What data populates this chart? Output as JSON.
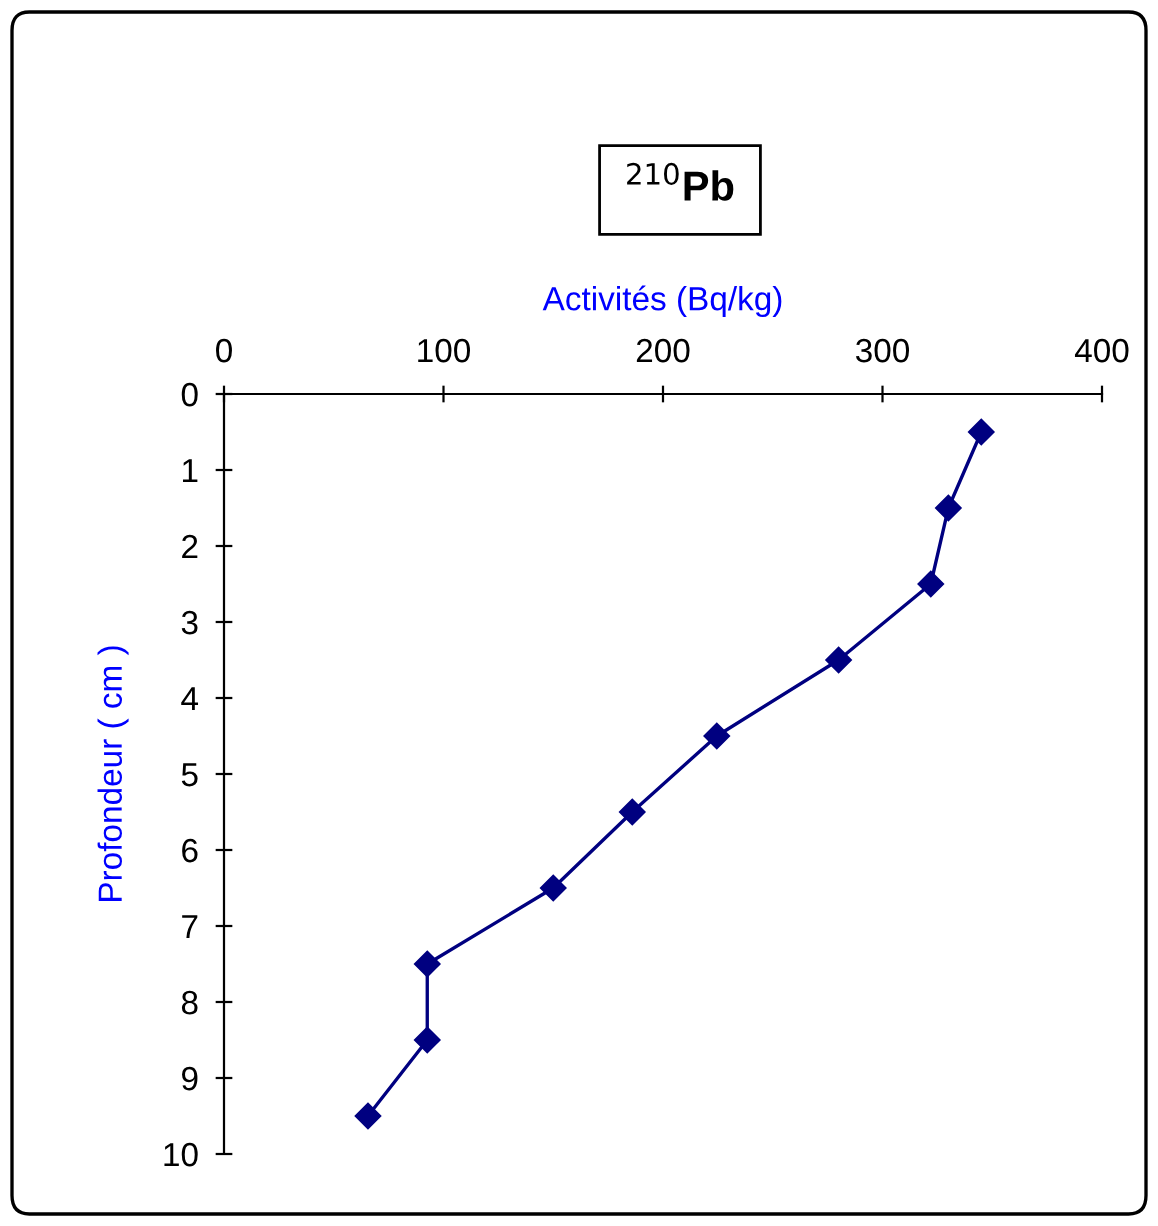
{
  "chart_data": {
    "type": "line",
    "title": "$^{210}$Pb",
    "xlabel": "Activités (Bq/kg)",
    "ylabel": "Profondeur ( cm )",
    "series": [
      {
        "color": "#000080",
        "x": [
          345,
          330,
          322,
          280,
          224.5,
          186,
          150,
          92.6,
          92.6,
          65.6
        ],
        "values": [
          0.5,
          1.5,
          2.5,
          3.5,
          4.5,
          5.5,
          6.5,
          7.5,
          8.5,
          9.5
        ]
      }
    ],
    "xlim": [
      0,
      400
    ],
    "xticks": [
      0,
      100,
      200,
      300,
      400
    ],
    "ylim": [
      10,
      0
    ],
    "yticks": [
      0,
      1,
      2,
      3,
      4,
      5,
      6,
      7,
      8,
      9,
      10
    ],
    "marker": "diamond",
    "line_style": "solid",
    "grid": false,
    "legend": false
  }
}
